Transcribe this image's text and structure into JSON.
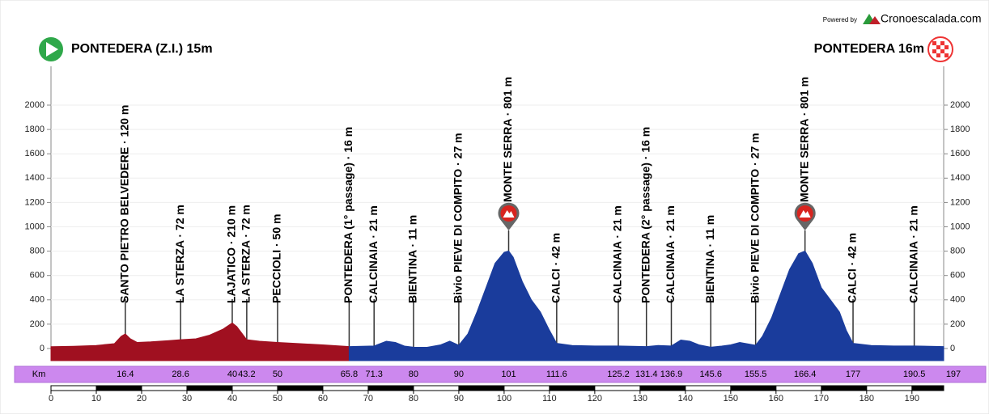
{
  "chart_data": {
    "type": "area",
    "start_label": "PONTEDERA (Z.I.) 15m",
    "finish_label": "PONTEDERA 16m",
    "powered_by": "Powered by",
    "brand": "Cronoescalada.com",
    "km_label": "Km",
    "xlim": [
      0,
      197
    ],
    "xticks": [
      0,
      10,
      20,
      30,
      40,
      50,
      60,
      70,
      80,
      90,
      100,
      110,
      120,
      130,
      140,
      150,
      160,
      170,
      180,
      190
    ],
    "ylim": [
      0,
      2000
    ],
    "yticks": [
      0,
      200,
      400,
      600,
      800,
      1000,
      1200,
      1400,
      1600,
      1800,
      2000
    ],
    "grid": true,
    "series": [
      {
        "color": "#a01020",
        "x": [
          0,
          5,
          10,
          14,
          15.5,
          16.4,
          17.5,
          19,
          22,
          26,
          28.6,
          32,
          35,
          38,
          40,
          41,
          43.2,
          46,
          50,
          55,
          60,
          65.8
        ],
        "values": [
          15,
          18,
          25,
          40,
          100,
          120,
          80,
          50,
          55,
          65,
          72,
          80,
          110,
          160,
          210,
          180,
          72,
          60,
          50,
          40,
          30,
          16
        ]
      },
      {
        "color": "#1a3c9c",
        "x": [
          65.8,
          71.3,
          74,
          76,
          78,
          80,
          83,
          86,
          88,
          90,
          92,
          94,
          96,
          98,
          100,
          101,
          102,
          104,
          106,
          108,
          110,
          111.6,
          115,
          120,
          125.2,
          131.4,
          134,
          136.9,
          139,
          141,
          143,
          145.6,
          148,
          150,
          152,
          155.5,
          157,
          159,
          161,
          163,
          165,
          166.4,
          168,
          170,
          172,
          174,
          175.5,
          177,
          181,
          186,
          190.5,
          197
        ],
        "values": [
          16,
          21,
          60,
          50,
          20,
          11,
          10,
          30,
          60,
          27,
          120,
          300,
          500,
          700,
          790,
          801,
          750,
          550,
          400,
          300,
          150,
          42,
          25,
          21,
          21,
          16,
          25,
          21,
          70,
          60,
          30,
          11,
          20,
          30,
          50,
          27,
          100,
          250,
          450,
          650,
          780,
          801,
          700,
          500,
          400,
          300,
          150,
          42,
          25,
          21,
          21,
          16
        ]
      }
    ],
    "waypoints": [
      {
        "km": 16.4,
        "label": "SANTO PIETRO BELVEDERE · 120 m"
      },
      {
        "km": 28.6,
        "label": "LA STERZA · 72 m"
      },
      {
        "km": 40,
        "label": "LAJATICO · 210 m"
      },
      {
        "km": 43.2,
        "label": "LA STERZA · 72 m"
      },
      {
        "km": 50,
        "label": "PECCIOLI · 50 m"
      },
      {
        "km": 65.8,
        "label": "PONTEDERA (1° passage) · 16 m"
      },
      {
        "km": 71.3,
        "label": "CALCINAIA · 21 m"
      },
      {
        "km": 80,
        "label": "BIENTINA · 11 m"
      },
      {
        "km": 90,
        "label": "Bivio PIEVE DI COMPITO · 27 m"
      },
      {
        "km": 101,
        "label": "MONTE SERRA · 801 m",
        "summit": true
      },
      {
        "km": 111.6,
        "label": "CALCI · 42 m"
      },
      {
        "km": 125.2,
        "label": "CALCINAIA · 21 m"
      },
      {
        "km": 131.4,
        "label": "PONTEDERA (2° passage) · 16 m"
      },
      {
        "km": 136.9,
        "label": "CALCINAIA · 21 m"
      },
      {
        "km": 145.6,
        "label": "BIENTINA · 11 m"
      },
      {
        "km": 155.5,
        "label": "Bivio PIEVE DI COMPITO · 27 m"
      },
      {
        "km": 166.4,
        "label": "MONTE SERRA · 801 m",
        "summit": true
      },
      {
        "km": 177,
        "label": "CALCI · 42 m"
      },
      {
        "km": 190.5,
        "label": "CALCINAIA · 21 m"
      }
    ]
  }
}
